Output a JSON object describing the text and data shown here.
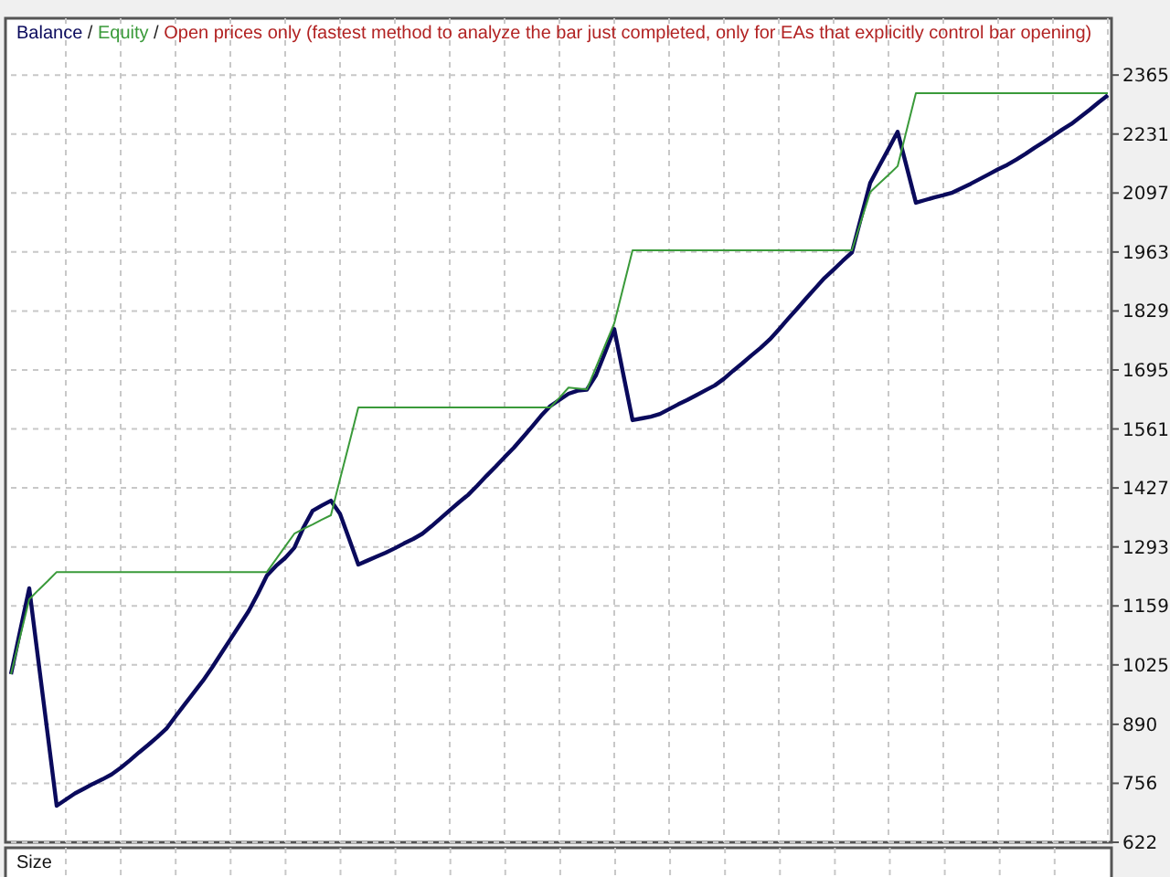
{
  "chart_data": [
    {
      "type": "line",
      "title": "Open prices only (fastest method to analyze the bar just completed, only for EAs that explicitly control bar opening)",
      "categories": [
        null,
        null,
        null,
        null,
        null,
        null,
        null,
        null,
        null,
        null,
        null,
        null,
        null,
        null,
        null,
        null,
        null,
        null,
        null,
        null,
        null,
        null,
        null,
        null,
        null,
        null,
        null,
        null,
        null,
        null,
        null,
        null,
        null,
        null,
        null,
        null,
        null,
        null,
        null,
        null,
        null,
        null,
        null,
        null,
        null,
        null,
        null,
        null,
        null,
        null,
        null,
        null,
        null,
        null,
        null,
        null,
        null,
        null,
        null,
        null,
        null,
        null,
        null,
        null,
        null,
        null,
        null,
        null,
        null,
        null,
        null,
        null,
        null,
        null,
        null,
        null,
        null,
        null,
        null,
        null,
        null,
        null,
        null,
        null,
        null,
        null,
        null,
        null,
        null,
        null,
        null,
        null,
        null,
        null,
        null,
        null,
        null,
        null,
        null,
        null,
        null,
        null,
        null,
        null,
        null,
        null,
        null,
        null,
        null,
        null,
        null,
        null,
        null,
        null,
        null,
        null,
        null,
        null,
        null,
        null,
        null
      ],
      "series": [
        {
          "name": "Balance",
          "color": "#0a0a5c",
          "values": [
            1004,
            1102,
            1199,
            1034,
            870,
            705,
            719,
            733,
            744,
            755,
            765,
            776,
            791,
            808,
            826,
            843,
            861,
            880,
            908,
            935,
            962,
            989,
            1019,
            1051,
            1083,
            1115,
            1147,
            1186,
            1228,
            1250,
            1268,
            1291,
            1337,
            1375,
            1387,
            1398,
            1368,
            1311,
            1253,
            1262,
            1271,
            1280,
            1290,
            1301,
            1311,
            1323,
            1340,
            1358,
            1376,
            1394,
            1411,
            1432,
            1454,
            1475,
            1497,
            1518,
            1542,
            1566,
            1591,
            1613,
            1627,
            1641,
            1648,
            1650,
            1683,
            1735,
            1788,
            1684,
            1581,
            1585,
            1589,
            1595,
            1606,
            1617,
            1627,
            1638,
            1649,
            1660,
            1675,
            1693,
            1710,
            1728,
            1745,
            1764,
            1787,
            1811,
            1834,
            1858,
            1881,
            1904,
            1923,
            1943,
            1962,
            2041,
            2120,
            2159,
            2197,
            2236,
            2156,
            2075,
            2081,
            2087,
            2092,
            2098,
            2108,
            2118,
            2129,
            2140,
            2151,
            2161,
            2173,
            2186,
            2200,
            2213,
            2227,
            2241,
            2254,
            2270,
            2286,
            2303,
            2319
          ]
        },
        {
          "name": "Equity",
          "color": "#3a9a3a",
          "values": [
            1004,
            1089,
            1174,
            1195,
            1215,
            1236,
            1236,
            1236,
            1236,
            1236,
            1236,
            1236,
            1236,
            1236,
            1236,
            1236,
            1236,
            1236,
            1236,
            1236,
            1236,
            1236,
            1236,
            1236,
            1236,
            1236,
            1236,
            1236,
            1236,
            1265,
            1294,
            1323,
            1334,
            1344,
            1355,
            1365,
            1447,
            1528,
            1610,
            1610,
            1610,
            1610,
            1610,
            1610,
            1610,
            1610,
            1610,
            1610,
            1610,
            1610,
            1610,
            1610,
            1610,
            1610,
            1610,
            1610,
            1610,
            1610,
            1610,
            1610,
            1632,
            1655,
            1653,
            1651,
            1701,
            1751,
            1801,
            1884,
            1967,
            1967,
            1967,
            1967,
            1967,
            1967,
            1967,
            1967,
            1967,
            1967,
            1967,
            1967,
            1967,
            1967,
            1967,
            1967,
            1967,
            1967,
            1967,
            1967,
            1967,
            1967,
            1967,
            1967,
            1967,
            2033,
            2099,
            2119,
            2138,
            2158,
            2241,
            2324,
            2324,
            2324,
            2324,
            2324,
            2324,
            2324,
            2324,
            2324,
            2324,
            2324,
            2324,
            2324,
            2324,
            2324,
            2324,
            2324,
            2324,
            2324,
            2324,
            2324,
            2324
          ]
        }
      ],
      "annotations": [
        "/",
        "/"
      ],
      "ylim": [
        622,
        2494
      ],
      "yticks": [
        622,
        756,
        890,
        1025,
        1159,
        1293,
        1427,
        1561,
        1695,
        1829,
        1963,
        2097,
        2231,
        2365
      ],
      "grid": true,
      "legend": "top left",
      "tick_labels": "y",
      "line_style": "solid",
      "marker": "none"
    },
    {
      "type": "other",
      "title": "Size"
    }
  ]
}
